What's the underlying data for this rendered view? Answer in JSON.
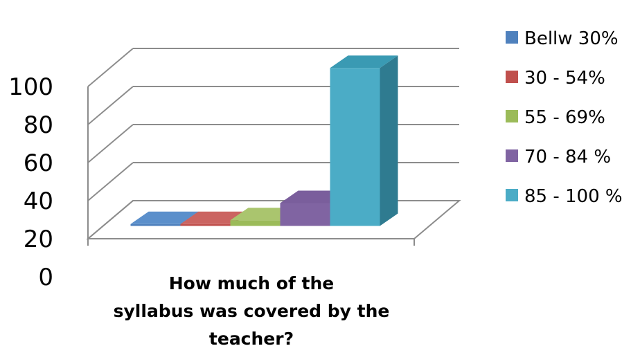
{
  "chart_data": {
    "type": "bar",
    "style": "3d-clustered-column",
    "xlabel_lines": [
      "How much of the",
      "syllabus was covered by the",
      "teacher?"
    ],
    "ylim": [
      0,
      100
    ],
    "yticks": [
      "0",
      "20",
      "40",
      "60",
      "80",
      "100"
    ],
    "yticks_values": [
      0,
      20,
      40,
      60,
      80,
      100
    ],
    "grid": true,
    "legend_position": "right",
    "series": [
      {
        "name": "Bellw 30%",
        "value": 1,
        "color": "#4F81BD",
        "side": "#3A6496",
        "top": "#5B8FCB"
      },
      {
        "name": "30 - 54%",
        "value": 1,
        "color": "#C0504D",
        "side": "#953A38",
        "top": "#CB6461"
      },
      {
        "name": "55 - 69%",
        "value": 3,
        "color": "#9BBB59",
        "side": "#769042",
        "top": "#AAC56E"
      },
      {
        "name": "70 - 84 %",
        "value": 12,
        "color": "#8064A2",
        "side": "#5F4A7A",
        "top": "#7A5E9C"
      },
      {
        "name": "85 - 100 %",
        "value": 83,
        "color": "#4BACC6",
        "side": "#2F7B90",
        "top": "#3A9AB3"
      }
    ]
  }
}
